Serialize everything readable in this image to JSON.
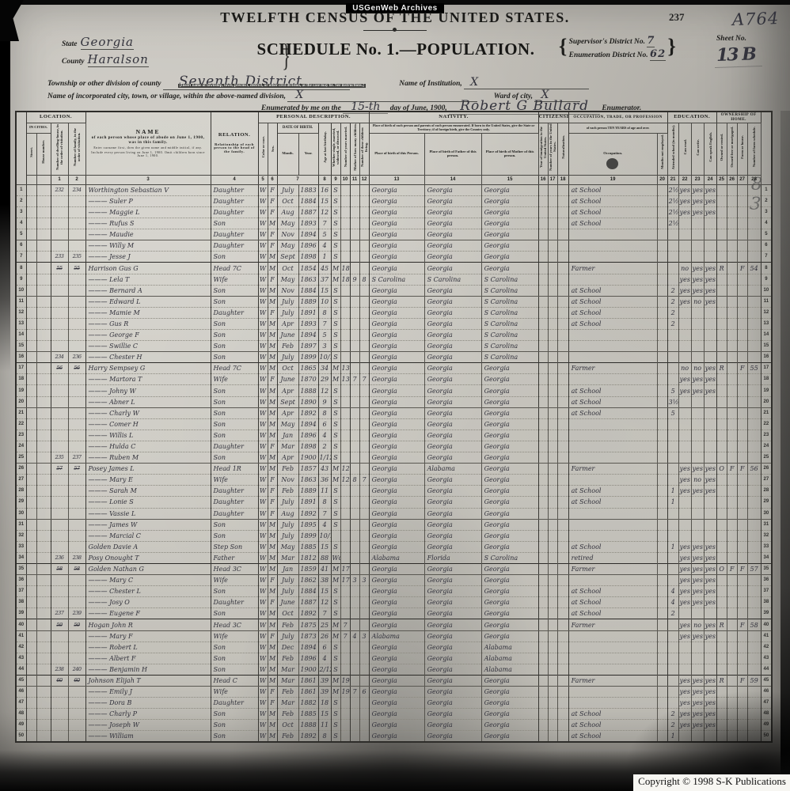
{
  "banner": {
    "label": "USGenWeb Archives"
  },
  "page": {
    "title": "TWELFTH CENSUS OF THE UNITED STATES.",
    "page_number": "237",
    "handwritten_corner": "A764",
    "margin_mark": "8 3",
    "copyright": "Copyright © 1998 S-K Publications"
  },
  "schedule": {
    "title": "SCHEDULE No. 1.—POPULATION."
  },
  "header_fields": {
    "state_label": "State",
    "state_value": "Georgia",
    "county_label": "County",
    "county_value": "Haralson",
    "supervisor_label": "Supervisor's District No.",
    "supervisor_value": "7",
    "enumeration_label": "Enumeration District No.",
    "enumeration_value": "62",
    "sheet_label": "Sheet No.",
    "sheet_value": "13 B",
    "township_label": "Township or other division of county",
    "township_value": "Seventh District",
    "township_note": "[Insert name of township, town, precinct, district, or other civil division, as the case may be.  See instructions.]",
    "institution_label": "Name of Institution,",
    "institution_value": "X",
    "city_label": "Name of incorporated city, town, or village, within the above-named division,",
    "city_value": "X",
    "ward_label": "Ward of city,",
    "ward_value": "X",
    "enumerated_prefix": "Enumerated by me on the",
    "enumerated_day": "15-th",
    "enumerated_mid": "day of June, 1900,",
    "enumerator_name": "Robert G Bullard",
    "enumerated_suffix": "Enumerator."
  },
  "table": {
    "header": {
      "location": "LOCATION.",
      "in_cities": "IN CITIES.",
      "street": "Street.",
      "house": "House number.",
      "dwelling": "Number of dwelling-house, in the order of visitation.",
      "family": "Number of family, in the order of visitation.",
      "name_title": "NAME",
      "name_main": "of each person whose place of abode on June 1, 1900, was in this family.",
      "name_sub1": "Enter surname first, then the given name and middle initial, if any.",
      "name_sub2": "Include every person living on June 1, 1900.  Omit children born since June 1, 1900.",
      "relation_title": "RELATION.",
      "relation_note": "Relationship of each person to the head of the family.",
      "personal": "PERSONAL DESCRIPTION.",
      "color": "Color or race.",
      "sex": "Sex.",
      "dob": "DATE OF BIRTH.",
      "month": "Month.",
      "year": "Year.",
      "age": "Age at last birthday.",
      "marital": "Whether single, married, widowed, or divorced.",
      "years_married": "Number of years married.",
      "mother_children": "Mother of how many children.",
      "children_living": "Number of these children living.",
      "nativity": "NATIVITY.",
      "nativity_note": "Place of birth of each person and parents of each person enumerated.  If born in the United States, give the State or Territory; if of foreign birth, give the Country only.",
      "pob": "Place of birth of this Person.",
      "pob_father": "Place of birth of Father of this person.",
      "pob_mother": "Place of birth of Mother of this person.",
      "citizenship": "CITIZENSHIP.",
      "immigration": "Year of immigration to the United States.",
      "years_us": "Number of years in the United States.",
      "naturalization": "Naturalization.",
      "occupation": "OCCUPATION, TRADE, OR PROFESSION",
      "occupation_note": "of each person TEN YEARS of age and over.",
      "occupation_col": "Occupation.",
      "months_unemployed": "Months not employed.",
      "education": "EDUCATION.",
      "school": "Attended school (in months).",
      "read": "Can read.",
      "write": "Can write.",
      "english": "Can speak English.",
      "ownership": "OWNERSHIP OF HOME.",
      "owned": "Owned or rented.",
      "mortgage": "Owned free or mortgaged.",
      "farm": "Farm or house.",
      "farm_schedule": "Number of farm schedule.",
      "numbers": [
        "1",
        "2",
        "3",
        "4",
        "5",
        "6",
        "7",
        "8",
        "9",
        "10",
        "11",
        "12",
        "13",
        "14",
        "15",
        "16",
        "17",
        "18",
        "19",
        "20",
        "21",
        "22",
        "23",
        "24",
        "25",
        "26",
        "27",
        "28"
      ]
    },
    "head_rows": [
      8,
      17,
      26,
      35,
      40,
      45
    ],
    "rows": [
      [
        "232",
        "234",
        "Worthington Sebastian V",
        "Daughter",
        "W",
        "F",
        "July",
        "1883",
        "16",
        "S",
        "",
        "",
        "",
        "Georgia",
        "Georgia",
        "Georgia",
        "at School",
        "2½",
        "yes",
        "yes",
        "yes"
      ],
      [
        "",
        "",
        "——— Suler P",
        "Daughter",
        "W",
        "F",
        "Oct",
        "1884",
        "15",
        "S",
        "",
        "",
        "",
        "Georgia",
        "Georgia",
        "Georgia",
        "at School",
        "2½",
        "yes",
        "yes",
        "yes"
      ],
      [
        "",
        "",
        "——— Maggie L",
        "Daughter",
        "W",
        "F",
        "Aug",
        "1887",
        "12",
        "S",
        "",
        "",
        "",
        "Georgia",
        "Georgia",
        "Georgia",
        "at School",
        "2½",
        "yes",
        "yes",
        "yes"
      ],
      [
        "",
        "",
        "——— Rufus S",
        "Son",
        "W",
        "M",
        "May",
        "1893",
        "7",
        "S",
        "",
        "",
        "",
        "Georgia",
        "Georgia",
        "Georgia",
        "at School",
        "2½"
      ],
      [
        "",
        "",
        "——— Maudie",
        "Daughter",
        "W",
        "F",
        "Nov",
        "1894",
        "5",
        "S",
        "",
        "",
        "",
        "Georgia",
        "Georgia",
        "Georgia"
      ],
      [
        "",
        "",
        "——— Willy M",
        "Daughter",
        "W",
        "F",
        "May",
        "1896",
        "4",
        "S",
        "",
        "",
        "",
        "Georgia",
        "Georgia",
        "Georgia"
      ],
      [
        "233",
        "235",
        "——— Jesse J",
        "Son",
        "W",
        "M",
        "Sept",
        "1898",
        "1",
        "S",
        "",
        "",
        "",
        "Georgia",
        "Georgia",
        "Georgia"
      ],
      [
        "55",
        "55",
        "Harrison Gus G",
        "Head 7C",
        "W",
        "M",
        "Oct",
        "1854",
        "45",
        "M",
        "18",
        "",
        "",
        "Georgia",
        "Georgia",
        "Georgia",
        "Farmer",
        "",
        "no",
        "yes",
        "yes",
        "R",
        "",
        "F",
        "54"
      ],
      [
        "",
        "",
        "——— Lela T",
        "Wife",
        "W",
        "F",
        "May",
        "1863",
        "37",
        "M",
        "18",
        "9",
        "8",
        "S Carolina",
        "S Carolina",
        "S Carolina",
        "",
        "",
        "yes",
        "yes",
        "yes"
      ],
      [
        "",
        "",
        "——— Bernard A",
        "Son",
        "W",
        "M",
        "Nov",
        "1884",
        "15",
        "S",
        "",
        "",
        "",
        "Georgia",
        "Georgia",
        "S Carolina",
        "at School",
        "2",
        "yes",
        "yes",
        "yes"
      ],
      [
        "",
        "",
        "——— Edward L",
        "Son",
        "W",
        "M",
        "July",
        "1889",
        "10",
        "S",
        "",
        "",
        "",
        "Georgia",
        "Georgia",
        "S Carolina",
        "at School",
        "2",
        "yes",
        "no",
        "yes"
      ],
      [
        "",
        "",
        "——— Mamie M",
        "Daughter",
        "W",
        "F",
        "July",
        "1891",
        "8",
        "S",
        "",
        "",
        "",
        "Georgia",
        "Georgia",
        "S Carolina",
        "at School",
        "2"
      ],
      [
        "",
        "",
        "——— Gus R",
        "Son",
        "W",
        "M",
        "Apr",
        "1893",
        "7",
        "S",
        "",
        "",
        "",
        "Georgia",
        "Georgia",
        "S Carolina",
        "at School",
        "2"
      ],
      [
        "",
        "",
        "——— George F",
        "Son",
        "W",
        "M",
        "June",
        "1894",
        "5",
        "S",
        "",
        "",
        "",
        "Georgia",
        "Georgia",
        "S Carolina"
      ],
      [
        "",
        "",
        "——— Swillie C",
        "Son",
        "W",
        "M",
        "Feb",
        "1897",
        "3",
        "S",
        "",
        "",
        "",
        "Georgia",
        "Georgia",
        "S Carolina"
      ],
      [
        "234",
        "236",
        "——— Chester H",
        "Son",
        "W",
        "M",
        "July",
        "1899",
        "10/12",
        "S",
        "",
        "",
        "",
        "Georgia",
        "Georgia",
        "S Carolina"
      ],
      [
        "56",
        "56",
        "Harry Sempsey G",
        "Head 7C",
        "W",
        "M",
        "Oct",
        "1865",
        "34",
        "M",
        "13",
        "",
        "",
        "Georgia",
        "Georgia",
        "Georgia",
        "Farmer",
        "",
        "no",
        "no",
        "yes",
        "R",
        "",
        "F",
        "55"
      ],
      [
        "",
        "",
        "——— Martora T",
        "Wife",
        "W",
        "F",
        "June",
        "1870",
        "29",
        "M",
        "13",
        "7",
        "7",
        "Georgia",
        "Georgia",
        "Georgia",
        "",
        "",
        "yes",
        "yes",
        "yes"
      ],
      [
        "",
        "",
        "——— Johny W",
        "Son",
        "W",
        "M",
        "Apr",
        "1888",
        "12",
        "S",
        "",
        "",
        "",
        "Georgia",
        "Georgia",
        "Georgia",
        "at School",
        "5",
        "yes",
        "yes",
        "yes"
      ],
      [
        "",
        "",
        "——— Abner L",
        "Son",
        "W",
        "M",
        "Sept",
        "1890",
        "9",
        "S",
        "",
        "",
        "",
        "Georgia",
        "Georgia",
        "Georgia",
        "at School",
        "3½"
      ],
      [
        "",
        "",
        "——— Charly W",
        "Son",
        "W",
        "M",
        "Apr",
        "1892",
        "8",
        "S",
        "",
        "",
        "",
        "Georgia",
        "Georgia",
        "Georgia",
        "at School",
        "5"
      ],
      [
        "",
        "",
        "——— Comer H",
        "Son",
        "W",
        "M",
        "May",
        "1894",
        "6",
        "S",
        "",
        "",
        "",
        "Georgia",
        "Georgia",
        "Georgia"
      ],
      [
        "",
        "",
        "——— Willis L",
        "Son",
        "W",
        "M",
        "Jan",
        "1896",
        "4",
        "S",
        "",
        "",
        "",
        "Georgia",
        "Georgia",
        "Georgia"
      ],
      [
        "",
        "",
        "——— Hulda C",
        "Daughter",
        "W",
        "F",
        "Mar",
        "1898",
        "2",
        "S",
        "",
        "",
        "",
        "Georgia",
        "Georgia",
        "Georgia"
      ],
      [
        "235",
        "237",
        "——— Ruben M",
        "Son",
        "W",
        "M",
        "Apr",
        "1900",
        "1/12",
        "S",
        "",
        "",
        "",
        "Georgia",
        "Georgia",
        "Georgia"
      ],
      [
        "57",
        "57",
        "Posey James L",
        "Head 1R",
        "W",
        "M",
        "Feb",
        "1857",
        "43",
        "M",
        "12",
        "",
        "",
        "Georgia",
        "Alabama",
        "Georgia",
        "Farmer",
        "",
        "yes",
        "yes",
        "yes",
        "O",
        "F",
        "F",
        "56"
      ],
      [
        "",
        "",
        "——— Mary E",
        "Wife",
        "W",
        "F",
        "Nov",
        "1863",
        "36",
        "M",
        "12",
        "8",
        "7",
        "Georgia",
        "Georgia",
        "Georgia",
        "",
        "",
        "yes",
        "no",
        "yes"
      ],
      [
        "",
        "",
        "——— Sarah M",
        "Daughter",
        "W",
        "F",
        "Feb",
        "1889",
        "11",
        "S",
        "",
        "",
        "",
        "Georgia",
        "Georgia",
        "Georgia",
        "at School",
        "1",
        "yes",
        "yes",
        "yes"
      ],
      [
        "",
        "",
        "——— Lonie S",
        "Daughter",
        "W",
        "F",
        "July",
        "1891",
        "8",
        "S",
        "",
        "",
        "",
        "Georgia",
        "Georgia",
        "Georgia",
        "at School",
        "1"
      ],
      [
        "",
        "",
        "——— Vassie L",
        "Daughter",
        "W",
        "F",
        "Aug",
        "1892",
        "7",
        "S",
        "",
        "",
        "",
        "Georgia",
        "Georgia",
        "Georgia"
      ],
      [
        "",
        "",
        "——— James W",
        "Son",
        "W",
        "M",
        "July",
        "1895",
        "4",
        "S",
        "",
        "",
        "",
        "Georgia",
        "Georgia",
        "Georgia"
      ],
      [
        "",
        "",
        "——— Marcial C",
        "Son",
        "W",
        "M",
        "July",
        "1899",
        "10/12",
        "",
        "",
        "",
        "",
        "Georgia",
        "Georgia",
        "Georgia"
      ],
      [
        "",
        "",
        "Golden Davie A",
        "Step Son",
        "W",
        "M",
        "May",
        "1885",
        "15",
        "S",
        "",
        "",
        "",
        "Georgia",
        "Georgia",
        "Georgia",
        "at School",
        "1",
        "yes",
        "yes",
        "yes"
      ],
      [
        "236",
        "238",
        "Posy Onought T",
        "Father",
        "W",
        "M",
        "Mar",
        "1812",
        "88",
        "Wd",
        "",
        "",
        "",
        "Alabama",
        "Florida",
        "S Carolina",
        "retired",
        "",
        "yes",
        "yes",
        "yes"
      ],
      [
        "58",
        "58",
        "Golden Nathan G",
        "Head 3C",
        "W",
        "M",
        "Jan",
        "1859",
        "41",
        "M",
        "17",
        "",
        "",
        "Georgia",
        "Georgia",
        "Georgia",
        "Farmer",
        "",
        "yes",
        "yes",
        "yes",
        "O",
        "F",
        "F",
        "57"
      ],
      [
        "",
        "",
        "——— Mary C",
        "Wife",
        "W",
        "F",
        "July",
        "1862",
        "38",
        "M",
        "17",
        "3",
        "3",
        "Georgia",
        "Georgia",
        "Georgia",
        "",
        "",
        "yes",
        "yes",
        "yes"
      ],
      [
        "",
        "",
        "——— Chester L",
        "Son",
        "W",
        "M",
        "July",
        "1884",
        "15",
        "S",
        "",
        "",
        "",
        "Georgia",
        "Georgia",
        "Georgia",
        "at School",
        "4",
        "yes",
        "yes",
        "yes"
      ],
      [
        "",
        "",
        "——— Josy O",
        "Daughter",
        "W",
        "F",
        "June",
        "1887",
        "12",
        "S",
        "",
        "",
        "",
        "Georgia",
        "Georgia",
        "Georgia",
        "at School",
        "4",
        "yes",
        "yes",
        "yes"
      ],
      [
        "237",
        "239",
        "——— Eugene F",
        "Son",
        "W",
        "M",
        "Oct",
        "1892",
        "7",
        "S",
        "",
        "",
        "",
        "Georgia",
        "Georgia",
        "Georgia",
        "at School",
        "2"
      ],
      [
        "59",
        "59",
        "Hogan John R",
        "Head 3C",
        "W",
        "M",
        "Feb",
        "1875",
        "25",
        "M",
        "7",
        "",
        "",
        "Georgia",
        "Georgia",
        "Georgia",
        "Farmer",
        "",
        "yes",
        "no",
        "yes",
        "R",
        "",
        "F",
        "58"
      ],
      [
        "",
        "",
        "——— Mary F",
        "Wife",
        "W",
        "F",
        "July",
        "1873",
        "26",
        "M",
        "7",
        "4",
        "3",
        "Alabama",
        "Georgia",
        "Georgia",
        "",
        "",
        "yes",
        "yes",
        "yes"
      ],
      [
        "",
        "",
        "——— Robert L",
        "Son",
        "W",
        "M",
        "Dec",
        "1894",
        "6",
        "S",
        "",
        "",
        "",
        "Georgia",
        "Georgia",
        "Alabama"
      ],
      [
        "",
        "",
        "——— Albert F",
        "Son",
        "W",
        "M",
        "Feb",
        "1896",
        "4",
        "S",
        "",
        "",
        "",
        "Georgia",
        "Georgia",
        "Alabama"
      ],
      [
        "238",
        "240",
        "——— Benjamin H",
        "Son",
        "W",
        "M",
        "Mar",
        "1900",
        "2/12",
        "S",
        "",
        "",
        "",
        "Georgia",
        "Georgia",
        "Alabama"
      ],
      [
        "60",
        "60",
        "Johnson Elijah T",
        "Head C",
        "W",
        "M",
        "Mar",
        "1861",
        "39",
        "M",
        "19",
        "",
        "",
        "Georgia",
        "Georgia",
        "Georgia",
        "Farmer",
        "",
        "yes",
        "yes",
        "yes",
        "R",
        "",
        "F",
        "59"
      ],
      [
        "",
        "",
        "——— Emily J",
        "Wife",
        "W",
        "F",
        "Feb",
        "1861",
        "39",
        "M",
        "19",
        "7",
        "6",
        "Georgia",
        "Georgia",
        "Georgia",
        "",
        "",
        "yes",
        "yes",
        "yes"
      ],
      [
        "",
        "",
        "——— Dora B",
        "Daughter",
        "W",
        "F",
        "Mar",
        "1882",
        "18",
        "S",
        "",
        "",
        "",
        "Georgia",
        "Georgia",
        "Georgia",
        "",
        "",
        "yes",
        "yes",
        "yes"
      ],
      [
        "",
        "",
        "——— Charly P",
        "Son",
        "W",
        "M",
        "Feb",
        "1885",
        "15",
        "S",
        "",
        "",
        "",
        "Georgia",
        "Georgia",
        "Georgia",
        "at School",
        "2",
        "yes",
        "yes",
        "yes"
      ],
      [
        "",
        "",
        "——— Joseph W",
        "Son",
        "W",
        "M",
        "Oct",
        "1888",
        "11",
        "S",
        "",
        "",
        "",
        "Georgia",
        "Georgia",
        "Georgia",
        "at School",
        "2",
        "yes",
        "yes",
        "yes"
      ],
      [
        "",
        "",
        "——— William",
        "Son",
        "W",
        "M",
        "Feb",
        "1892",
        "8",
        "S",
        "",
        "",
        "",
        "Georgia",
        "Georgia",
        "Georgia",
        "at School",
        "1"
      ]
    ]
  }
}
